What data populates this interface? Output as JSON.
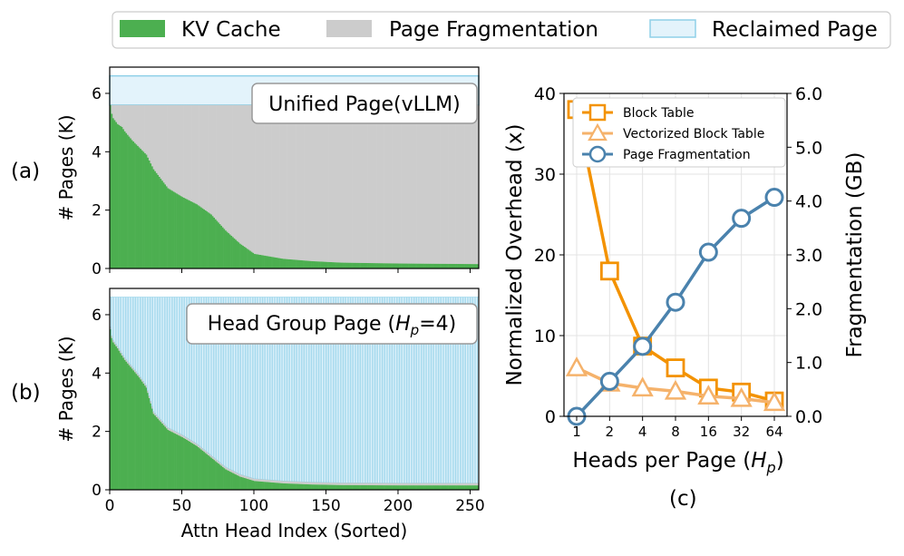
{
  "colors": {
    "kv_cache": "#4caf50",
    "page_fragmentation": "#cccccc",
    "reclaimed_fill": "#e3f3fb",
    "reclaimed_edge": "#8fd0e8",
    "block_table": "#f39200",
    "vectorized_block_table": "#f5b26b",
    "page_fragmentation_line": "#4a82ad"
  },
  "legend": {
    "kv_cache": "KV Cache",
    "page_fragmentation": "Page Fragmentation",
    "reclaimed_page": "Reclaimed Page"
  },
  "panel_labels": {
    "a": "(a)",
    "b": "(b)",
    "c": "(c)"
  },
  "chart_data": [
    {
      "type": "bar",
      "panel": "(a)",
      "annotation": "Unified Page(vLLM)",
      "ylabel": "# Pages (K)",
      "xlabel": "",
      "xlim": [
        0,
        256
      ],
      "ylim": [
        0,
        6.9
      ],
      "yticks": [
        "0",
        "2",
        "4",
        "6"
      ],
      "x_anchor": [
        0,
        1,
        2,
        5,
        8,
        10,
        15,
        20,
        25,
        30,
        40,
        50,
        60,
        70,
        80,
        90,
        100,
        120,
        140,
        160,
        200,
        256
      ],
      "kv_cache_anchor": [
        5.6,
        5.3,
        5.15,
        4.95,
        4.85,
        4.7,
        4.4,
        4.15,
        3.9,
        3.4,
        2.75,
        2.45,
        2.2,
        1.85,
        1.3,
        0.85,
        0.5,
        0.33,
        0.25,
        0.2,
        0.17,
        0.15
      ],
      "total_pages": 5.6,
      "reclaimed_top": 6.6,
      "legend": [
        "KV Cache",
        "Page Fragmentation",
        "Reclaimed Page"
      ]
    },
    {
      "type": "bar",
      "panel": "(b)",
      "annotation_prefix": "Head Group Page (",
      "annotation_var": "H",
      "annotation_sub": "p",
      "annotation_suffix": "=4)",
      "ylabel": "# Pages (K)",
      "xlabel": "Attn Head Index (Sorted)",
      "xlim": [
        0,
        256
      ],
      "ylim": [
        0,
        6.9
      ],
      "xticks": [
        "0",
        "50",
        "100",
        "150",
        "200",
        "250"
      ],
      "yticks": [
        "0",
        "2",
        "4",
        "6"
      ],
      "x_anchor": [
        0,
        1,
        2,
        5,
        8,
        10,
        15,
        20,
        25,
        30,
        40,
        50,
        60,
        70,
        80,
        90,
        100,
        120,
        140,
        160,
        200,
        256
      ],
      "kv_cache_anchor": [
        5.5,
        5.2,
        5.05,
        4.85,
        4.6,
        4.45,
        4.15,
        3.85,
        3.5,
        2.6,
        2.05,
        1.8,
        1.5,
        1.1,
        0.7,
        0.45,
        0.3,
        0.22,
        0.18,
        0.16,
        0.15,
        0.15
      ],
      "fragmentation_margin": 0.08,
      "reclaimed_top": 6.6,
      "legend": [
        "KV Cache",
        "Page Fragmentation",
        "Reclaimed Page"
      ]
    },
    {
      "type": "line",
      "panel": "(c)",
      "x": [
        "1",
        "2",
        "4",
        "8",
        "16",
        "32",
        "64"
      ],
      "xlabel_prefix": "Heads per Page (",
      "xlabel_var": "H",
      "xlabel_sub": "p",
      "xlabel_suffix": ")",
      "ylabel": "Normalized Overhead (x)",
      "ylabel_right": "Fragmentation (GB)",
      "ylim": [
        0,
        40
      ],
      "ylim_right": [
        0,
        6
      ],
      "yticks": [
        "0",
        "10",
        "20",
        "30",
        "40"
      ],
      "yticks_right": [
        "0.0",
        "1.0",
        "2.0",
        "3.0",
        "4.0",
        "5.0",
        "6.0"
      ],
      "grid": true,
      "legend_position": "top-right",
      "series": [
        {
          "name": "Block Table",
          "axis": "left",
          "marker": "square",
          "color": "#f39200",
          "values": [
            38,
            18,
            8.7,
            6,
            3.5,
            3,
            1.9
          ]
        },
        {
          "name": "Vectorized Block Table",
          "axis": "left",
          "marker": "triangle",
          "color": "#f5b26b",
          "values": [
            6,
            4.1,
            3.5,
            3.1,
            2.5,
            2.2,
            1.7
          ]
        },
        {
          "name": "Page Fragmentation",
          "axis": "right",
          "marker": "circle",
          "color": "#4a82ad",
          "values": [
            0.0,
            0.65,
            1.3,
            2.12,
            3.05,
            3.68,
            4.07
          ]
        }
      ]
    }
  ]
}
